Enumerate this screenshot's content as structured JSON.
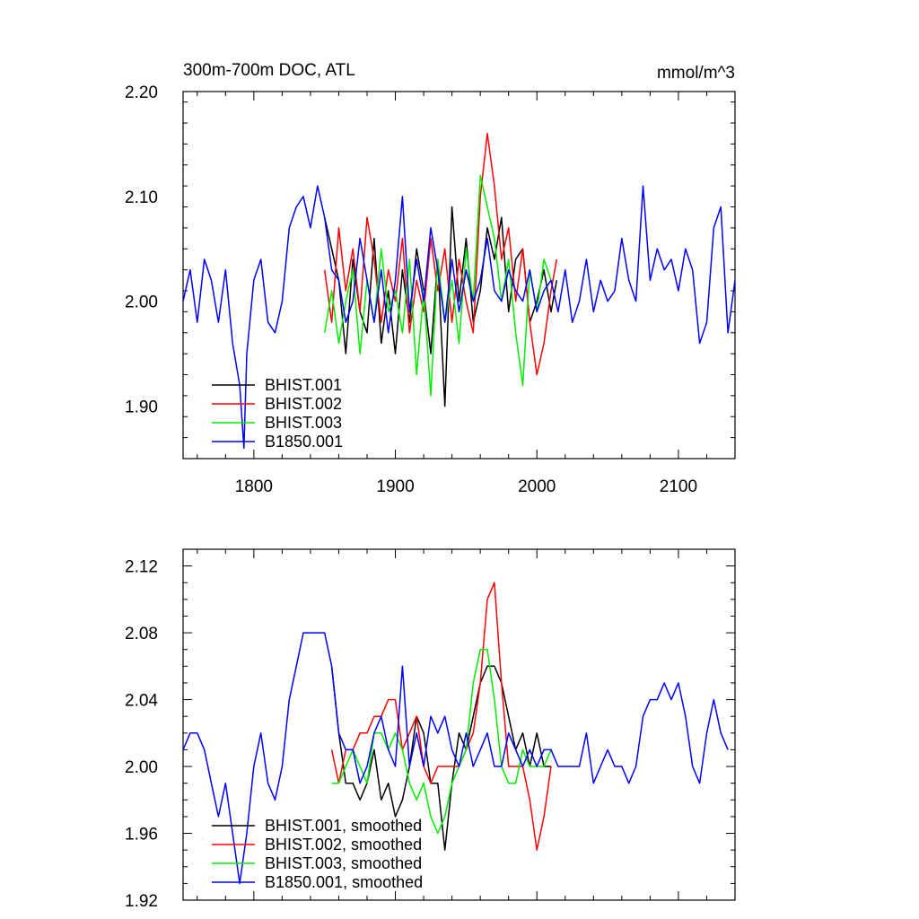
{
  "chart_data": [
    {
      "type": "line",
      "title": "300m-700m DOC, ATL",
      "units": "mmol/m^3",
      "xlabel": "",
      "ylabel": "",
      "xlim": [
        1750,
        2140
      ],
      "ylim": [
        1.85,
        2.2
      ],
      "x_ticks": [
        1800,
        1900,
        2000,
        2100
      ],
      "x_tick_labels": [
        "1800",
        "1900",
        "2000",
        "2100"
      ],
      "y_ticks": [
        1.9,
        2.0,
        2.1,
        2.2
      ],
      "y_tick_labels": [
        "1.90",
        "2.00",
        "2.10",
        "2.20"
      ],
      "x_minor_step": 20,
      "y_minor_step": 0.02,
      "legend_position": "bottom-left",
      "series": [
        {
          "name": "BHIST.001",
          "color": "#000000",
          "x": [
            1850,
            1860,
            1865,
            1870,
            1875,
            1880,
            1885,
            1890,
            1895,
            1900,
            1905,
            1910,
            1915,
            1920,
            1925,
            1930,
            1935,
            1940,
            1945,
            1950,
            1955,
            1960,
            1965,
            1970,
            1975,
            1980,
            1985,
            1990,
            1995,
            2000,
            2005,
            2010,
            2014
          ],
          "y": [
            2.08,
            2.02,
            1.95,
            2.04,
            1.99,
            1.97,
            2.06,
            1.96,
            2.01,
            1.95,
            2.03,
            1.98,
            2.05,
            2.01,
            1.95,
            2.04,
            1.9,
            2.09,
            2.0,
            2.06,
            1.98,
            2.01,
            2.07,
            2.04,
            2.08,
            1.99,
            2.04,
            2.05,
            1.98,
            2.0,
            2.03,
            1.99,
            2.02
          ]
        },
        {
          "name": "BHIST.002",
          "color": "#ff0000",
          "x": [
            1850,
            1855,
            1860,
            1865,
            1870,
            1875,
            1880,
            1885,
            1890,
            1895,
            1900,
            1905,
            1910,
            1915,
            1920,
            1925,
            1930,
            1935,
            1940,
            1945,
            1950,
            1955,
            1960,
            1965,
            1970,
            1975,
            1980,
            1985,
            1990,
            1995,
            2000,
            2005,
            2010,
            2014
          ],
          "y": [
            2.03,
            1.98,
            2.07,
            2.01,
            2.05,
            1.99,
            2.08,
            2.04,
            1.98,
            2.03,
            2.0,
            2.06,
            1.97,
            2.02,
            1.99,
            2.06,
            2.01,
            2.05,
            1.98,
            2.04,
            2.0,
            1.97,
            2.1,
            2.16,
            2.11,
            2.04,
            2.07,
            2.0,
            2.05,
            1.98,
            1.93,
            1.96,
            2.01,
            2.04
          ]
        },
        {
          "name": "BHIST.003",
          "color": "#00ee00",
          "x": [
            1850,
            1855,
            1860,
            1865,
            1870,
            1875,
            1880,
            1885,
            1890,
            1895,
            1900,
            1905,
            1910,
            1915,
            1920,
            1925,
            1930,
            1935,
            1940,
            1945,
            1950,
            1955,
            1960,
            1965,
            1970,
            1975,
            1980,
            1985,
            1990,
            1995,
            2000,
            2005,
            2010
          ],
          "y": [
            1.97,
            2.01,
            1.96,
            2.0,
            2.03,
            1.95,
            2.02,
            1.98,
            2.05,
            1.99,
            2.01,
            1.97,
            2.04,
            1.93,
            2.01,
            1.91,
            2.04,
            1.98,
            2.02,
            1.96,
            2.05,
            2.0,
            2.12,
            2.09,
            2.06,
            2.0,
            2.04,
            1.97,
            1.92,
            2.03,
            1.99,
            2.04,
            2.02
          ]
        },
        {
          "name": "B1850.001",
          "color": "#0000ff",
          "x": [
            1750,
            1755,
            1760,
            1765,
            1770,
            1775,
            1780,
            1785,
            1790,
            1793,
            1795,
            1800,
            1805,
            1810,
            1815,
            1820,
            1825,
            1830,
            1835,
            1840,
            1845,
            1850,
            1855,
            1860,
            1865,
            1870,
            1875,
            1880,
            1885,
            1890,
            1895,
            1900,
            1905,
            1910,
            1915,
            1920,
            1925,
            1930,
            1935,
            1940,
            1945,
            1950,
            1955,
            1960,
            1965,
            1970,
            1975,
            1980,
            1985,
            1990,
            1995,
            2000,
            2005,
            2010,
            2015,
            2020,
            2025,
            2030,
            2035,
            2040,
            2045,
            2050,
            2055,
            2060,
            2065,
            2070,
            2075,
            2080,
            2085,
            2090,
            2095,
            2100,
            2105,
            2110,
            2115,
            2120,
            2125,
            2130,
            2135,
            2140
          ],
          "y": [
            2.0,
            2.03,
            1.98,
            2.04,
            2.02,
            1.98,
            2.03,
            1.96,
            1.92,
            1.86,
            1.95,
            2.02,
            2.04,
            1.98,
            1.97,
            2.0,
            2.07,
            2.09,
            2.1,
            2.07,
            2.11,
            2.08,
            2.03,
            2.02,
            1.98,
            2.0,
            2.06,
            2.02,
            1.98,
            2.03,
            1.97,
            2.02,
            2.1,
            1.99,
            2.04,
            2.0,
            2.07,
            2.03,
            1.98,
            2.04,
            1.99,
            2.03,
            2.0,
            2.02,
            2.06,
            2.01,
            2.0,
            2.03,
            2.01,
            2.0,
            2.03,
            1.99,
            2.01,
            2.02,
            1.99,
            2.03,
            1.98,
            2.0,
            2.04,
            1.99,
            2.02,
            2.0,
            2.01,
            2.06,
            2.02,
            2.0,
            2.11,
            2.02,
            2.05,
            2.03,
            2.04,
            2.01,
            2.05,
            2.03,
            1.96,
            1.98,
            2.07,
            2.09,
            1.97,
            2.02
          ]
        }
      ]
    },
    {
      "type": "line",
      "title": "",
      "xlabel": "",
      "ylabel": "",
      "xlim": [
        1750,
        2140
      ],
      "ylim": [
        1.92,
        2.13
      ],
      "x_ticks": [
        1800,
        1900,
        2000,
        2100
      ],
      "x_tick_labels": [],
      "y_ticks": [
        1.92,
        1.96,
        2.0,
        2.04,
        2.08,
        2.12
      ],
      "y_tick_labels": [
        "1.92",
        "1.96",
        "2.00",
        "2.04",
        "2.08",
        "2.12"
      ],
      "x_minor_step": 20,
      "y_minor_step": 0.01,
      "legend_position": "bottom-left",
      "series": [
        {
          "name": "BHIST.001, smoothed",
          "color": "#000000",
          "x": [
            1855,
            1860,
            1865,
            1870,
            1875,
            1880,
            1885,
            1890,
            1895,
            1900,
            1905,
            1910,
            1915,
            1920,
            1925,
            1930,
            1935,
            1940,
            1945,
            1950,
            1955,
            1960,
            1965,
            1970,
            1975,
            1980,
            1985,
            1990,
            1995,
            2000,
            2005,
            2010
          ],
          "y": [
            2.06,
            2.02,
            1.99,
            1.99,
            1.98,
            1.99,
            2.01,
            1.98,
            1.99,
            1.97,
            1.98,
            2.0,
            2.03,
            2.02,
            1.99,
            1.99,
            1.95,
            1.99,
            2.02,
            2.01,
            2.03,
            2.05,
            2.06,
            2.06,
            2.05,
            2.03,
            2.01,
            2.02,
            2.0,
            2.02,
            2.0,
            2.0
          ]
        },
        {
          "name": "BHIST.002, smoothed",
          "color": "#ff0000",
          "x": [
            1855,
            1860,
            1865,
            1870,
            1875,
            1880,
            1885,
            1890,
            1895,
            1900,
            1905,
            1910,
            1915,
            1920,
            1925,
            1930,
            1935,
            1940,
            1945,
            1950,
            1955,
            1960,
            1965,
            1970,
            1975,
            1980,
            1985,
            1990,
            1995,
            2000,
            2005,
            2010
          ],
          "y": [
            2.01,
            1.99,
            2.01,
            2.01,
            2.02,
            2.02,
            2.03,
            2.03,
            2.04,
            2.04,
            2.01,
            2.02,
            2.03,
            2.0,
            1.99,
            2.0,
            2.0,
            2.0,
            2.0,
            2.01,
            2.02,
            2.05,
            2.1,
            2.11,
            2.05,
            2.0,
            2.0,
            2.0,
            1.98,
            1.95,
            1.97,
            2.0
          ]
        },
        {
          "name": "BHIST.003, smoothed",
          "color": "#00ee00",
          "x": [
            1855,
            1860,
            1865,
            1870,
            1875,
            1880,
            1885,
            1890,
            1895,
            1900,
            1905,
            1910,
            1915,
            1920,
            1925,
            1930,
            1935,
            1940,
            1945,
            1950,
            1955,
            1960,
            1965,
            1970,
            1975,
            1980,
            1985,
            1990,
            1995,
            2000,
            2005,
            2010
          ],
          "y": [
            1.99,
            1.99,
            2.0,
            2.01,
            2.0,
            1.99,
            2.02,
            2.02,
            2.01,
            2.02,
            2.01,
            1.99,
            1.98,
            1.99,
            1.97,
            1.96,
            1.97,
            1.99,
            2.0,
            2.01,
            2.05,
            2.07,
            2.07,
            2.04,
            2.0,
            1.99,
            1.99,
            2.01,
            2.0,
            2.0,
            2.0,
            2.01
          ]
        },
        {
          "name": "B1850.001, smoothed",
          "color": "#0000ff",
          "x": [
            1750,
            1755,
            1760,
            1765,
            1770,
            1775,
            1780,
            1785,
            1790,
            1795,
            1800,
            1805,
            1810,
            1815,
            1820,
            1825,
            1830,
            1835,
            1840,
            1845,
            1850,
            1855,
            1860,
            1865,
            1870,
            1875,
            1880,
            1885,
            1890,
            1895,
            1900,
            1905,
            1910,
            1915,
            1920,
            1925,
            1930,
            1935,
            1940,
            1945,
            1950,
            1955,
            1960,
            1965,
            1970,
            1975,
            1980,
            1985,
            1990,
            1995,
            2000,
            2005,
            2010,
            2015,
            2020,
            2025,
            2030,
            2035,
            2040,
            2045,
            2050,
            2055,
            2060,
            2065,
            2070,
            2075,
            2080,
            2085,
            2090,
            2095,
            2100,
            2105,
            2110,
            2115,
            2120,
            2125,
            2130,
            2135
          ],
          "y": [
            2.01,
            2.02,
            2.02,
            2.01,
            1.99,
            1.97,
            1.99,
            1.96,
            1.93,
            1.96,
            2.0,
            2.02,
            1.99,
            1.98,
            2.0,
            2.04,
            2.06,
            2.08,
            2.08,
            2.08,
            2.08,
            2.06,
            2.02,
            2.01,
            2.01,
            1.99,
            2.0,
            2.02,
            2.03,
            2.01,
            2.0,
            2.06,
            2.0,
            2.02,
            2.0,
            2.03,
            2.02,
            2.03,
            2.01,
            2.0,
            2.02,
            2.0,
            2.01,
            2.02,
            2.0,
            2.0,
            2.02,
            2.01,
            2.0,
            2.01,
            2.0,
            2.01,
            2.01,
            2.0,
            2.0,
            2.0,
            2.0,
            2.02,
            1.99,
            2.0,
            2.01,
            2.0,
            2.0,
            1.99,
            2.0,
            2.03,
            2.04,
            2.04,
            2.05,
            2.04,
            2.05,
            2.03,
            2.0,
            1.99,
            2.02,
            2.04,
            2.02,
            2.01
          ]
        }
      ]
    }
  ]
}
